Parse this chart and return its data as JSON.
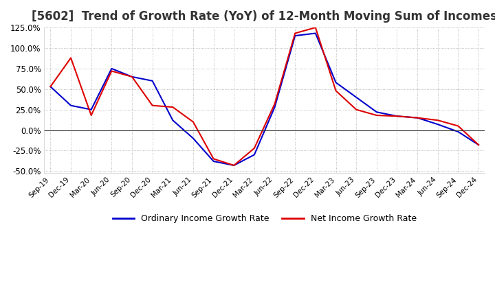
{
  "title": "[5602]  Trend of Growth Rate (YoY) of 12-Month Moving Sum of Incomes",
  "title_fontsize": 12,
  "background_color": "#ffffff",
  "plot_bg_color": "#ffffff",
  "grid_color": "#aaaaaa",
  "ylim": [
    -0.52,
    0.145
  ],
  "yticks": [
    -0.5,
    -0.25,
    0.0,
    0.25,
    0.5,
    0.75,
    1.0,
    1.25
  ],
  "legend_labels": [
    "Ordinary Income Growth Rate",
    "Net Income Growth Rate"
  ],
  "legend_colors": [
    "#0000cc",
    "#dd0000"
  ],
  "x_labels": [
    "Sep-19",
    "Dec-19",
    "Mar-20",
    "Jun-20",
    "Sep-20",
    "Dec-20",
    "Mar-21",
    "Jun-21",
    "Sep-21",
    "Dec-21",
    "Mar-22",
    "Jun-22",
    "Sep-22",
    "Dec-22",
    "Mar-23",
    "Jun-23",
    "Sep-23",
    "Dec-23",
    "Mar-24",
    "Jun-24",
    "Sep-24",
    "Dec-24"
  ],
  "ordinary_income": [
    0.53,
    0.3,
    0.25,
    0.75,
    0.65,
    0.6,
    0.12,
    -0.1,
    -0.38,
    -0.43,
    -0.3,
    0.28,
    1.15,
    1.18,
    0.58,
    0.4,
    0.22,
    0.17,
    0.15,
    0.07,
    -0.02,
    -0.18
  ],
  "net_income": [
    0.53,
    0.88,
    0.18,
    0.72,
    0.65,
    0.3,
    0.28,
    0.1,
    -0.35,
    -0.43,
    -0.22,
    0.32,
    1.18,
    1.25,
    0.48,
    0.25,
    0.18,
    0.17,
    0.15,
    0.12,
    0.05,
    -0.18
  ]
}
